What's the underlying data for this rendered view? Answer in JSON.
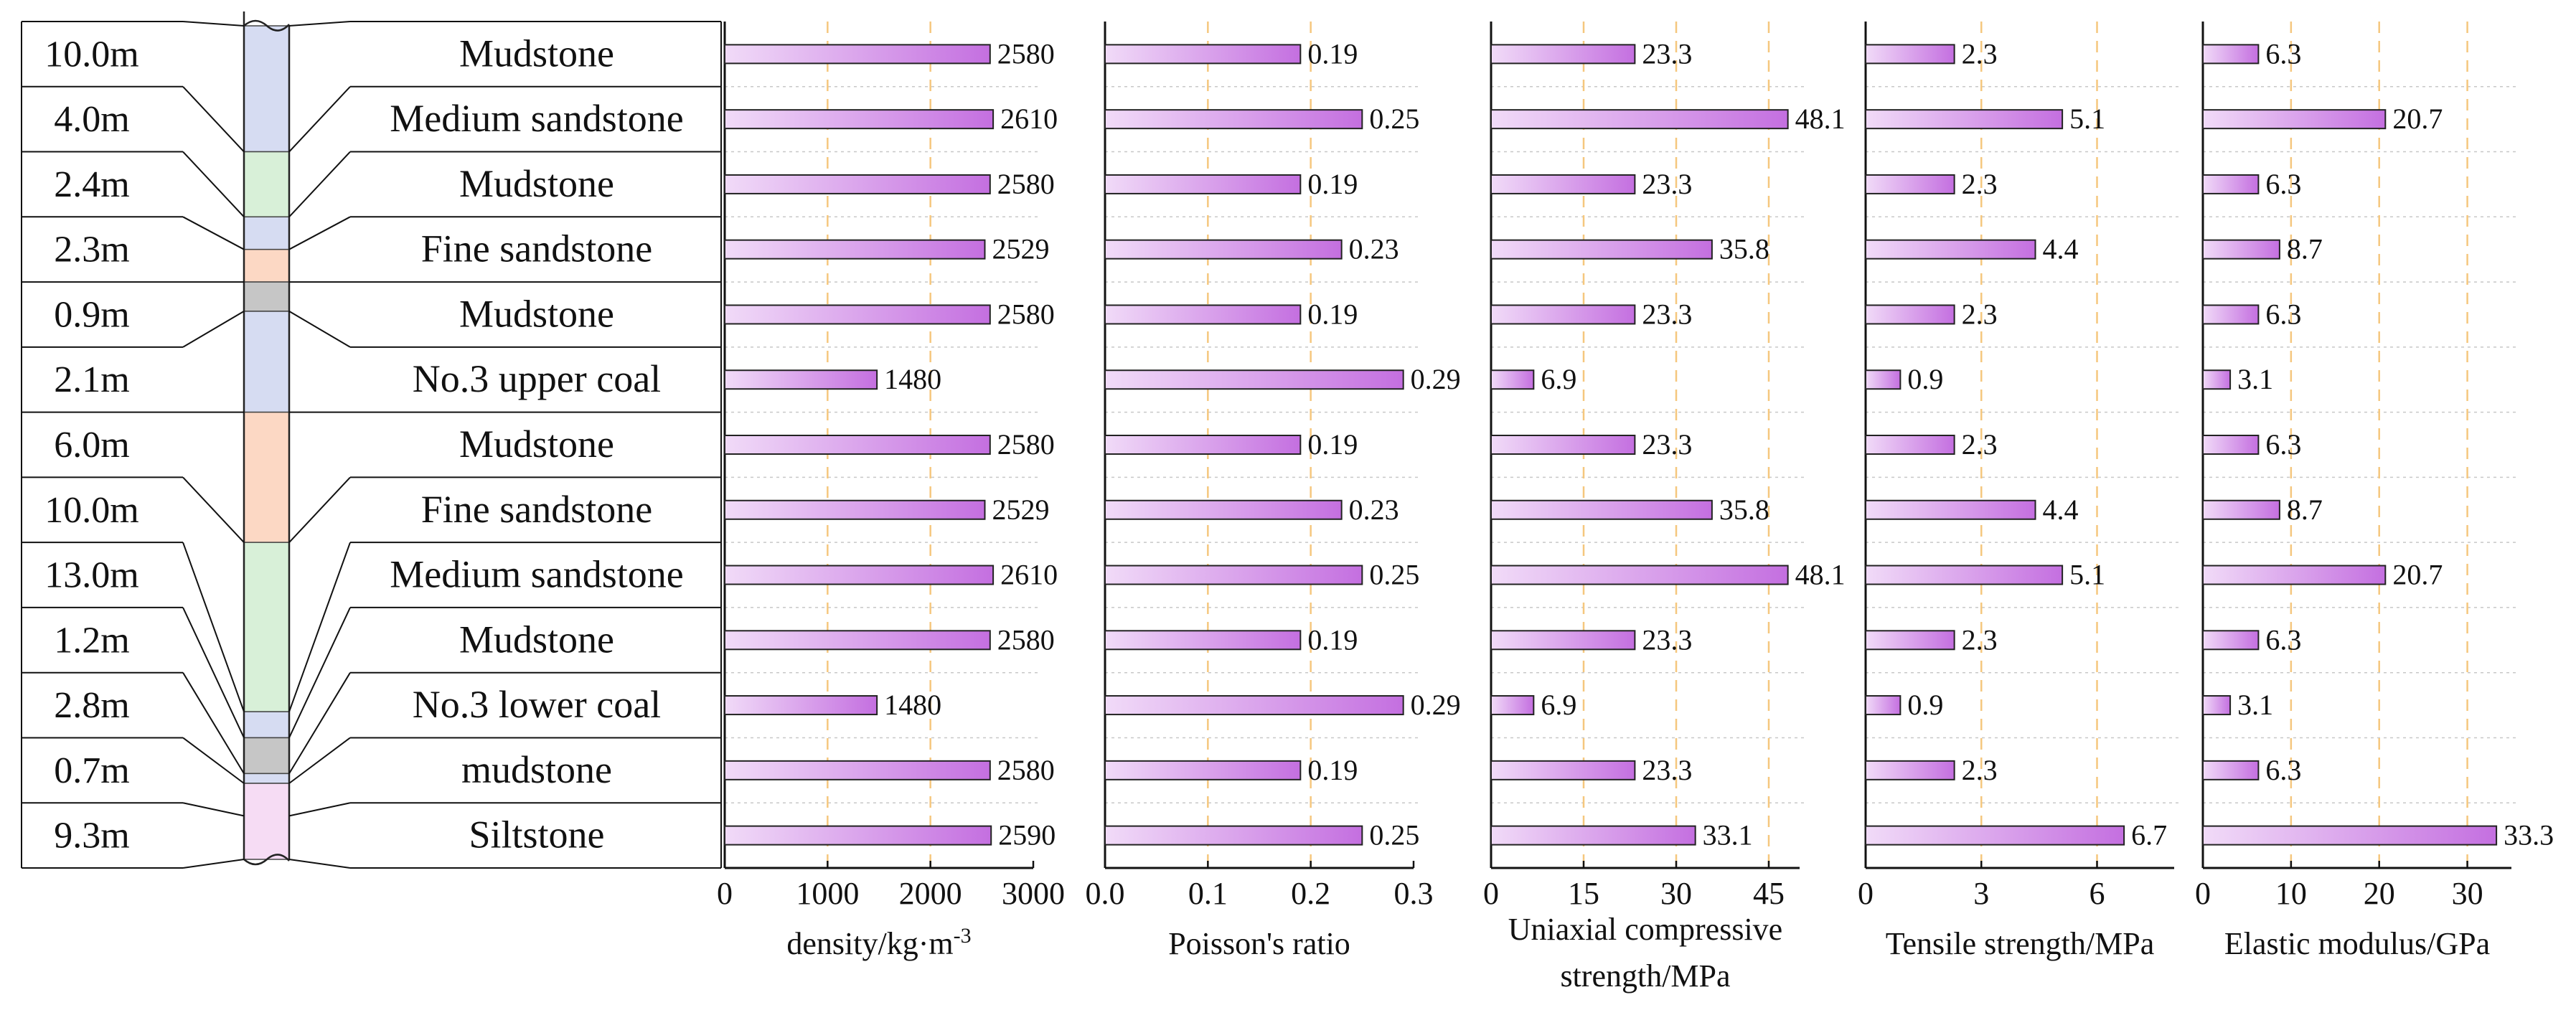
{
  "colors": {
    "bar_light": "#f1dbf8",
    "bar_dark": "#c46fe0",
    "bar_border": "#222222",
    "grid_dashed": "#f5c77e",
    "row_divider": "#c8c8c8",
    "column_fills": {
      "blue": "#d6dcf2",
      "green": "#d8f0d8",
      "orange": "#fcd8c4",
      "gray": "#c6c6c6",
      "pink": "#f6dcf4"
    }
  },
  "column_segments": [
    {
      "fill": "blue",
      "from_row": 0,
      "to_row": 2
    },
    {
      "fill": "green",
      "from_row": 2,
      "to_row": 3
    },
    {
      "fill": "blue",
      "from_row": 3,
      "to_row": 3.5
    },
    {
      "fill": "orange",
      "from_row": 3.5,
      "to_row": 4
    },
    {
      "fill": "gray",
      "from_row": 4,
      "to_row": 4.45
    },
    {
      "fill": "blue",
      "from_row": 4.45,
      "to_row": 6
    },
    {
      "fill": "orange",
      "from_row": 6,
      "to_row": 8
    },
    {
      "fill": "green",
      "from_row": 8,
      "to_row": 10.6
    },
    {
      "fill": "blue",
      "from_row": 10.6,
      "to_row": 11
    },
    {
      "fill": "gray",
      "from_row": 11,
      "to_row": 11.55
    },
    {
      "fill": "blue",
      "from_row": 11.55,
      "to_row": 11.7
    },
    {
      "fill": "pink",
      "from_row": 11.7,
      "to_row": 13
    }
  ],
  "chart_data": {
    "type": "bar",
    "orientation": "horizontal",
    "categories": [
      "Mudstone",
      "Medium sandstone",
      "Mudstone",
      "Fine sandstone",
      "Mudstone",
      "No.3 upper coal",
      "Mudstone",
      "Fine sandstone",
      "Medium sandstone",
      "Mudstone",
      "No.3 lower coal",
      "mudstone",
      "Siltstone"
    ],
    "thicknesses": [
      "10.0m",
      "4.0m",
      "2.4m",
      "2.3m",
      "0.9m",
      "2.1m",
      "6.0m",
      "10.0m",
      "13.0m",
      "1.2m",
      "2.8m",
      "0.7m",
      "9.3m"
    ],
    "panels": [
      {
        "name": "density",
        "xlabel": [
          "density/kg·m",
          "-3"
        ],
        "xlim": [
          0,
          3000
        ],
        "ticks": [
          0,
          1000,
          2000,
          3000
        ],
        "tick_labels": [
          "0",
          "1000",
          "2000",
          "3000"
        ],
        "gridlines": [
          1000,
          2000
        ],
        "values": [
          2580,
          2610,
          2580,
          2529,
          2580,
          1480,
          2580,
          2529,
          2610,
          2580,
          1480,
          2580,
          2590
        ],
        "labels": [
          "2580",
          "2610",
          "2580",
          "2529",
          "2580",
          "1480",
          "2580",
          "2529",
          "2610",
          "2580",
          "1480",
          "2580",
          "2590"
        ]
      },
      {
        "name": "poisson",
        "xlabel": [
          "Poisson's ratio"
        ],
        "xlim": [
          0,
          0.3
        ],
        "ticks": [
          0,
          0.1,
          0.2,
          0.3
        ],
        "tick_labels": [
          "0.0",
          "0.1",
          "0.2",
          "0.3"
        ],
        "gridlines": [
          0.1,
          0.2
        ],
        "values": [
          0.19,
          0.25,
          0.19,
          0.23,
          0.19,
          0.29,
          0.19,
          0.23,
          0.25,
          0.19,
          0.29,
          0.19,
          0.25
        ],
        "labels": [
          "0.19",
          "0.25",
          "0.19",
          "0.23",
          "0.19",
          "0.29",
          "0.19",
          "0.23",
          "0.25",
          "0.19",
          "0.29",
          "0.19",
          "0.25"
        ]
      },
      {
        "name": "ucs",
        "xlabel": [
          "Uniaxial compressive",
          "strength/MPa"
        ],
        "xlim": [
          0,
          50
        ],
        "ticks": [
          0,
          15,
          30,
          45
        ],
        "tick_labels": [
          "0",
          "15",
          "30",
          "45"
        ],
        "gridlines": [
          15,
          30,
          45
        ],
        "values": [
          23.3,
          48.1,
          23.3,
          35.8,
          23.3,
          6.9,
          23.3,
          35.8,
          48.1,
          23.3,
          6.9,
          23.3,
          33.1
        ],
        "labels": [
          "23.3",
          "48.1",
          "23.3",
          "35.8",
          "23.3",
          "6.9",
          "23.3",
          "35.8",
          "48.1",
          "23.3",
          "6.9",
          "23.3",
          "33.1"
        ]
      },
      {
        "name": "tensile",
        "xlabel": [
          "Tensile strength/MPa"
        ],
        "xlim": [
          0,
          8
        ],
        "ticks": [
          0,
          3,
          6
        ],
        "tick_labels": [
          "0",
          "3",
          "6"
        ],
        "gridlines": [
          3,
          6
        ],
        "values": [
          2.3,
          5.1,
          2.3,
          4.4,
          2.3,
          0.9,
          2.3,
          4.4,
          5.1,
          2.3,
          0.9,
          2.3,
          6.7
        ],
        "labels": [
          "2.3",
          "5.1",
          "2.3",
          "4.4",
          "2.3",
          "0.9",
          "2.3",
          "4.4",
          "5.1",
          "2.3",
          "0.9",
          "2.3",
          "6.7"
        ]
      },
      {
        "name": "elastic",
        "xlabel": [
          "Elastic modulus/GPa"
        ],
        "xlim": [
          0,
          35
        ],
        "ticks": [
          0,
          10,
          20,
          30
        ],
        "tick_labels": [
          "0",
          "10",
          "20",
          "30"
        ],
        "gridlines": [
          10,
          20,
          30
        ],
        "values": [
          6.3,
          20.7,
          6.3,
          8.7,
          6.3,
          3.1,
          6.3,
          8.7,
          20.7,
          6.3,
          3.1,
          6.3,
          33.3
        ],
        "labels": [
          "6.3",
          "20.7",
          "6.3",
          "8.7",
          "6.3",
          "3.1",
          "6.3",
          "8.7",
          "20.7",
          "6.3",
          "3.1",
          "6.3",
          "33.3"
        ]
      }
    ]
  }
}
